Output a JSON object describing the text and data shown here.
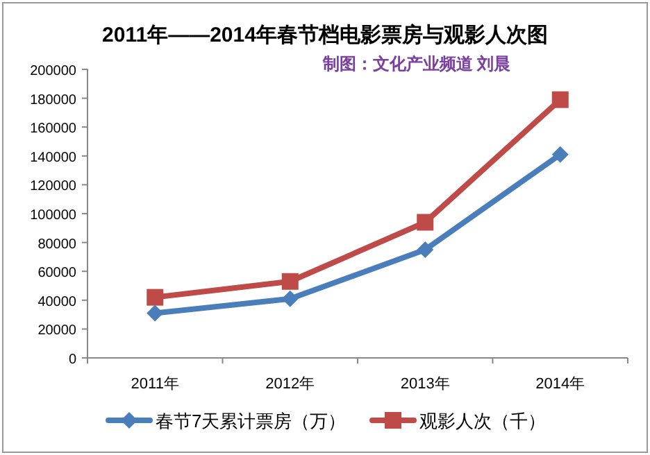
{
  "chart_data": {
    "type": "line",
    "title": "2011年——2014年春节档电影票房与观影人次图",
    "subtitle": "制图：文化产业频道 刘晨",
    "categories": [
      "2011年",
      "2012年",
      "2013年",
      "2014年"
    ],
    "series": [
      {
        "name": "春节7天累计票房（万）",
        "color": "#4a7ebb",
        "marker": "diamond",
        "values": [
          31000,
          41000,
          75000,
          141000
        ]
      },
      {
        "name": "观影人次（千）",
        "color": "#be4b48",
        "marker": "square",
        "values": [
          42000,
          53000,
          94000,
          179000
        ]
      }
    ],
    "ylim": [
      0,
      200000
    ],
    "yticks": [
      0,
      20000,
      40000,
      60000,
      80000,
      100000,
      120000,
      140000,
      160000,
      180000,
      200000
    ],
    "grid": false,
    "legend": "bottom"
  }
}
